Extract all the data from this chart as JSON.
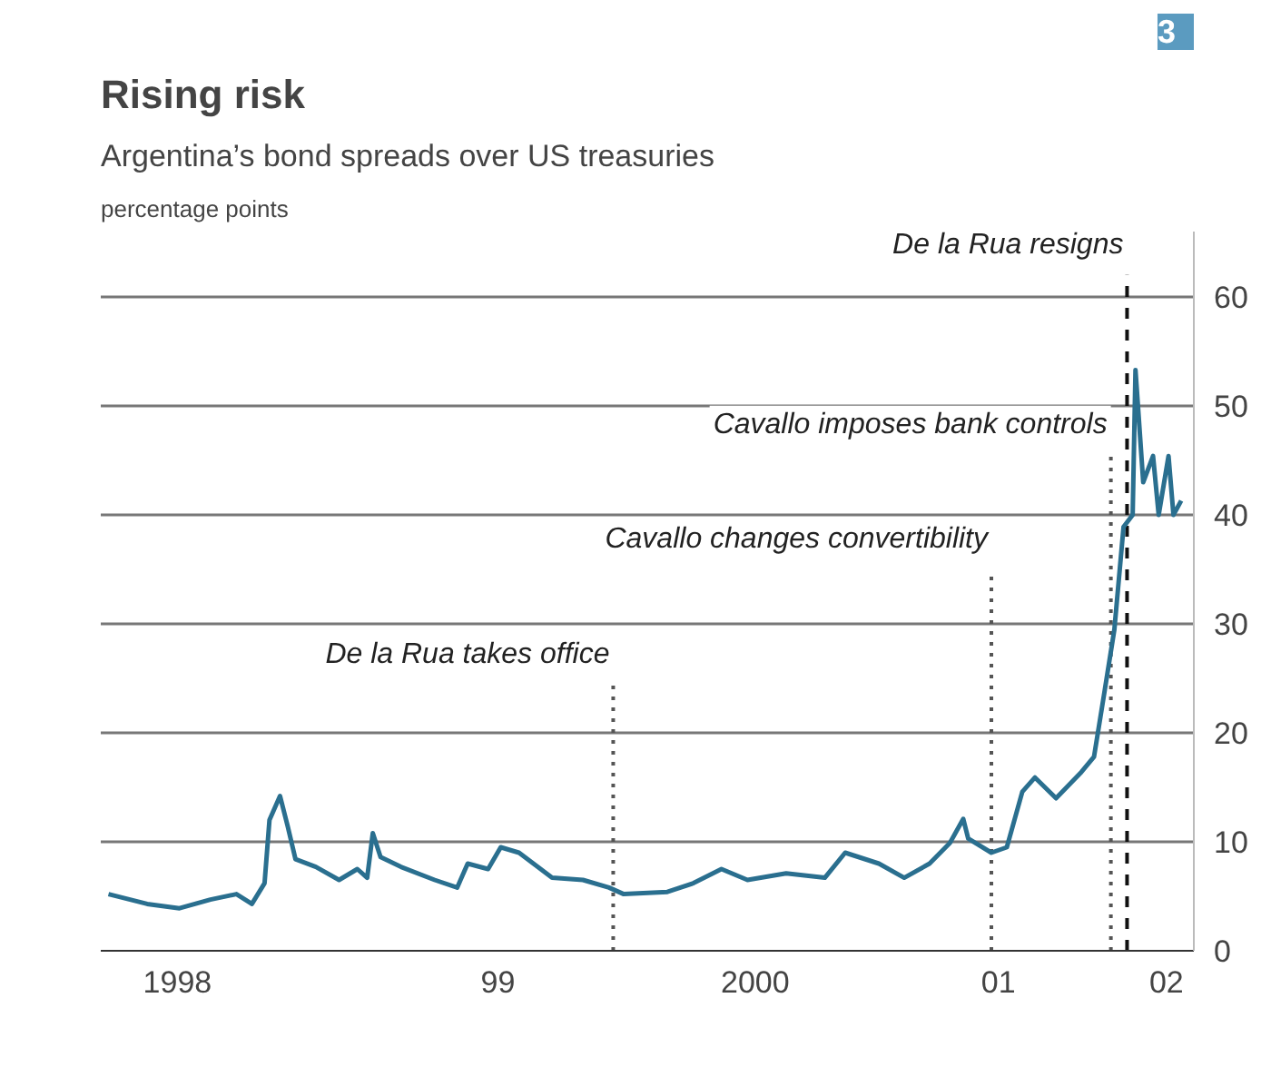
{
  "chart_data": {
    "type": "line",
    "title": "Rising risk",
    "subtitle": "Argentina’s bond spreads over US treasuries",
    "ylabel": "percentage points",
    "annotations": [
      "3"
    ],
    "x": [
      "1998-01-12",
      "1998-03-08",
      "1998-04-23",
      "1998-06-06",
      "1998-07-13",
      "1998-08-04",
      "1998-08-22",
      "1998-08-29",
      "1998-09-13",
      "1998-09-24",
      "1998-10-05",
      "1998-11-03",
      "1998-12-06",
      "1999-01-01",
      "1999-01-15",
      "1999-01-23",
      "1999-02-03",
      "1999-03-04",
      "1999-04-21",
      "1999-05-23",
      "1999-06-07",
      "1999-07-06",
      "1999-07-24",
      "1999-08-19",
      "1999-10-05",
      "1999-11-18",
      "1999-12-25",
      "2000-01-15",
      "2000-03-17",
      "2000-04-23",
      "2000-06-02",
      "2000-07-09",
      "2000-09-02",
      "2000-10-27",
      "2000-11-25",
      "2001-01-12",
      "2001-02-17",
      "2001-03-25",
      "2001-04-23",
      "2001-05-12",
      "2001-05-19",
      "2001-06-21",
      "2001-07-13",
      "2001-08-04",
      "2001-08-22",
      "2001-09-21",
      "2001-10-27",
      "2001-11-14",
      "2001-11-28",
      "2001-12-13",
      "2001-12-26",
      "2002-01-08",
      "2002-01-12",
      "2002-01-23",
      "2002-02-06",
      "2002-02-14",
      "2002-02-28",
      "2002-03-07",
      "2002-03-18"
    ],
    "series": [
      {
        "color": "#2a6f8f",
        "values": [
          5.2,
          4.3,
          3.9,
          4.7,
          5.2,
          4.3,
          6.2,
          12,
          14.2,
          11.4,
          8.4,
          7.7,
          6.5,
          7.5,
          6.7,
          10.8,
          8.6,
          7.7,
          6.5,
          5.8,
          8,
          7.5,
          9.5,
          9,
          6.7,
          6.5,
          5.8,
          5.2,
          5.4,
          6.2,
          7.5,
          6.5,
          7.1,
          6.7,
          9,
          8,
          6.7,
          8,
          9.9,
          12.1,
          10.3,
          9,
          9.5,
          14.6,
          15.9,
          14,
          16.4,
          17.8,
          23.4,
          29.5,
          38.9,
          40,
          53.3,
          43,
          45.4,
          40,
          45.4,
          40,
          41.3
        ]
      }
    ],
    "xlim": [
      "1998-01-01",
      "2002-04-05"
    ],
    "xticks": [
      {
        "value": "1998-04-20",
        "label": "1998"
      },
      {
        "value": "1999-07-20",
        "label": "99"
      },
      {
        "value": "2000-07-20",
        "label": "2000"
      },
      {
        "value": "2001-07-01",
        "label": "01"
      },
      {
        "value": "2002-02-25",
        "label": "02"
      }
    ],
    "ylim": [
      0,
      66
    ],
    "yticks": [
      0,
      10,
      20,
      30,
      40,
      50,
      60
    ],
    "grid": "y",
    "marker": "none",
    "line_style": "solid",
    "ref_lines": [
      {
        "axis": "x",
        "value": "1999-12-31",
        "label": "De la Rua takes office",
        "color": "#555555",
        "line_style": "dotted"
      },
      {
        "axis": "x",
        "value": "2001-06-21",
        "label": "Cavallo changes convertibility",
        "color": "#555555",
        "line_style": "dotted"
      },
      {
        "axis": "x",
        "value": "2001-12-08",
        "label": "Cavallo imposes bank controls",
        "color": "#555555",
        "line_style": "dotted"
      },
      {
        "axis": "x",
        "value": "2001-12-31",
        "label": "De la Rua resigns",
        "color": "#111111",
        "line_style": "dashed"
      }
    ]
  }
}
